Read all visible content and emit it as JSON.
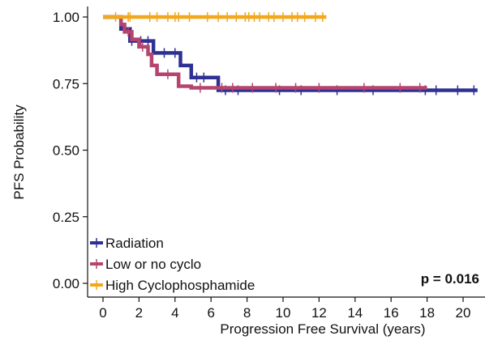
{
  "chart_data": {
    "type": "line",
    "title": "",
    "xlabel": "Progression Free Survival (years)",
    "ylabel": "PFS Probability",
    "xlim": [
      0,
      20.8
    ],
    "ylim": [
      0,
      1
    ],
    "xticks": [
      0,
      2,
      4,
      6,
      8,
      10,
      12,
      14,
      16,
      18,
      20
    ],
    "yticks": [
      "0.00",
      "0.25",
      "0.50",
      "0.75",
      "1.00"
    ],
    "grid": false,
    "legend_position": "bottom-left",
    "annotation": "p = 0.016",
    "series": [
      {
        "name": "Radiation",
        "color": "#2e3192",
        "steps": [
          [
            0,
            1.0
          ],
          [
            1.0,
            1.0
          ],
          [
            1.0,
            0.955
          ],
          [
            1.5,
            0.955
          ],
          [
            1.5,
            0.91
          ],
          [
            2.8,
            0.91
          ],
          [
            2.8,
            0.865
          ],
          [
            4.3,
            0.865
          ],
          [
            4.3,
            0.818
          ],
          [
            4.9,
            0.818
          ],
          [
            4.9,
            0.773
          ],
          [
            6.4,
            0.773
          ],
          [
            6.4,
            0.725
          ],
          [
            20.8,
            0.725
          ]
        ],
        "censor_x": [
          1.6,
          2.1,
          2.5,
          3.4,
          4.0,
          5.2,
          5.6,
          6.8,
          7.5,
          9.8,
          11.0,
          13.0,
          15.0,
          17.9,
          18.5,
          19.7,
          20.6
        ]
      },
      {
        "name": "Low or no cyclo",
        "color": "#b5456e",
        "steps": [
          [
            0,
            1.0
          ],
          [
            1.0,
            1.0
          ],
          [
            1.0,
            0.972
          ],
          [
            1.2,
            0.972
          ],
          [
            1.2,
            0.944
          ],
          [
            1.6,
            0.944
          ],
          [
            1.6,
            0.916
          ],
          [
            2.0,
            0.916
          ],
          [
            2.0,
            0.888
          ],
          [
            2.5,
            0.888
          ],
          [
            2.5,
            0.86
          ],
          [
            2.7,
            0.86
          ],
          [
            2.7,
            0.818
          ],
          [
            3.0,
            0.818
          ],
          [
            3.0,
            0.785
          ],
          [
            4.2,
            0.785
          ],
          [
            4.2,
            0.74
          ],
          [
            4.9,
            0.74
          ],
          [
            4.9,
            0.734
          ],
          [
            18.0,
            0.734
          ]
        ],
        "censor_x": [
          1.4,
          2.2,
          3.6,
          5.4,
          6.6,
          7.2,
          8.3,
          9.6,
          10.7,
          12.0,
          14.5,
          16.5,
          17.6
        ]
      },
      {
        "name": "High Cyclophosphamide",
        "color": "#f2a81d",
        "steps": [
          [
            0,
            1.0
          ],
          [
            12.4,
            1.0
          ]
        ],
        "censor_x": [
          0.7,
          1.4,
          1.5,
          2.6,
          3.0,
          3.6,
          4.0,
          4.2,
          4.8,
          5.8,
          6.4,
          6.9,
          7.4,
          7.9,
          8.1,
          8.4,
          8.7,
          9.2,
          9.5,
          10.0,
          10.5,
          10.8,
          11.2,
          11.8,
          12.2
        ]
      }
    ]
  }
}
